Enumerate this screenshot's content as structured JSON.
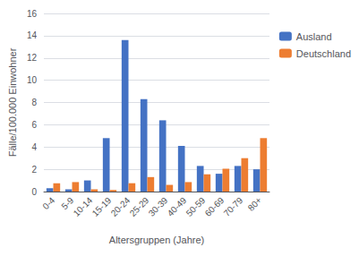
{
  "chart_data": {
    "type": "bar",
    "xlabel": "Altersgruppen (Jahre)",
    "ylabel": "Fälle/100.000 Einwohner",
    "categories": [
      "0-4",
      "5-9",
      "10-14",
      "15-19",
      "20-24",
      "25-29",
      "30-39",
      "40-49",
      "50-59",
      "60-69",
      "70-79",
      "80+"
    ],
    "series": [
      {
        "name": "Ausland",
        "color": "#4472C4",
        "values": [
          0.3,
          0.2,
          1.0,
          4.8,
          13.6,
          8.3,
          6.4,
          4.1,
          2.3,
          1.6,
          2.3,
          2.0
        ]
      },
      {
        "name": "Deutschland",
        "color": "#ED7D31",
        "values": [
          0.75,
          0.85,
          0.2,
          0.15,
          0.75,
          1.3,
          0.6,
          0.85,
          1.55,
          2.05,
          3.0,
          4.8
        ]
      }
    ],
    "ylim": [
      0,
      16
    ],
    "yticks": [
      0,
      2,
      4,
      6,
      8,
      10,
      12,
      14,
      16
    ],
    "grid": true,
    "legend": "upper right"
  }
}
